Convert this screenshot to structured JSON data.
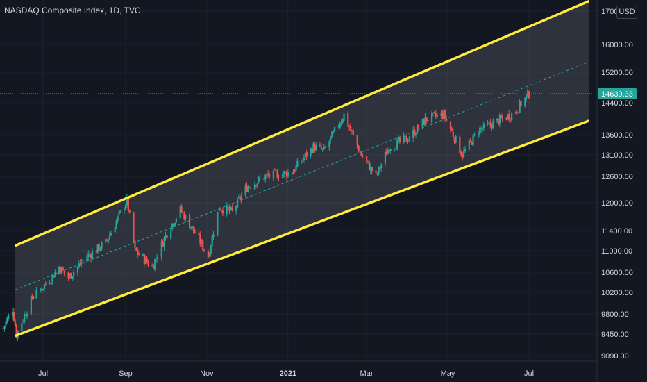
{
  "header": {
    "title": "NASDAQ Composite Index, 1D, TVC",
    "currency": "USD"
  },
  "colors": {
    "background": "#131722",
    "grid": "#1e222d",
    "axis_text": "#d1d4dc",
    "up": "#26a69a",
    "down": "#ef5350",
    "channel": "#ffeb3b",
    "channel_fill": "#787b86",
    "midline": "#26a69a",
    "price_tag": "#26a69a"
  },
  "chart_data": {
    "type": "candlestick",
    "title": "NASDAQ Composite Index, 1D, TVC",
    "last_price": 14639.33,
    "last_price_label": "14639.33",
    "y_ticks": [
      {
        "value": 9090,
        "label": "9090.00"
      },
      {
        "value": 9450,
        "label": "9450.00"
      },
      {
        "value": 9800,
        "label": "9800.00"
      },
      {
        "value": 10200,
        "label": "10200.00"
      },
      {
        "value": 10600,
        "label": "10600.00"
      },
      {
        "value": 11000,
        "label": "11000.00"
      },
      {
        "value": 11400,
        "label": "11400.00"
      },
      {
        "value": 12000,
        "label": "12000.00"
      },
      {
        "value": 12600,
        "label": "12600.00"
      },
      {
        "value": 13100,
        "label": "13100.00"
      },
      {
        "value": 13600,
        "label": "13600.00"
      },
      {
        "value": 14400,
        "label": "14400.00"
      },
      {
        "value": 15200,
        "label": "15200.00"
      },
      {
        "value": 16000,
        "label": "16000.00"
      },
      {
        "value": 17000,
        "label": "17000.00"
      }
    ],
    "x_ticks": [
      {
        "date": "2020-07-01",
        "label": "Jul",
        "bold": false
      },
      {
        "date": "2020-09-01",
        "label": "Sep",
        "bold": false
      },
      {
        "date": "2020-11-01",
        "label": "Nov",
        "bold": false
      },
      {
        "date": "2021-01-01",
        "label": "2021",
        "bold": true
      },
      {
        "date": "2021-03-01",
        "label": "Mar",
        "bold": false
      },
      {
        "date": "2021-05-01",
        "label": "May",
        "bold": false
      },
      {
        "date": "2021-07-01",
        "label": "Jul",
        "bold": false
      }
    ],
    "price_path": [
      [
        "2020-06-01",
        9550
      ],
      [
        "2020-06-08",
        9900
      ],
      [
        "2020-06-11",
        9450
      ],
      [
        "2020-06-23",
        10100
      ],
      [
        "2020-07-06",
        10450
      ],
      [
        "2020-07-13",
        10700
      ],
      [
        "2020-07-20",
        10500
      ],
      [
        "2020-08-03",
        10900
      ],
      [
        "2020-08-17",
        11150
      ],
      [
        "2020-09-02",
        12050
      ],
      [
        "2020-09-08",
        11000
      ],
      [
        "2020-09-21",
        10700
      ],
      [
        "2020-10-01",
        11300
      ],
      [
        "2020-10-12",
        11850
      ],
      [
        "2020-10-20",
        11500
      ],
      [
        "2020-11-02",
        10900
      ],
      [
        "2020-11-10",
        11900
      ],
      [
        "2020-11-20",
        11800
      ],
      [
        "2020-12-01",
        12350
      ],
      [
        "2020-12-15",
        12600
      ],
      [
        "2021-01-04",
        12700
      ],
      [
        "2021-01-20",
        13300
      ],
      [
        "2021-01-28",
        13200
      ],
      [
        "2021-02-12",
        14100
      ],
      [
        "2021-02-25",
        13100
      ],
      [
        "2021-03-08",
        12600
      ],
      [
        "2021-03-18",
        13300
      ],
      [
        "2021-04-01",
        13500
      ],
      [
        "2021-04-15",
        14000
      ],
      [
        "2021-04-28",
        14100
      ],
      [
        "2021-05-12",
        13100
      ],
      [
        "2021-05-24",
        13700
      ],
      [
        "2021-06-08",
        13950
      ],
      [
        "2021-06-20",
        14150
      ],
      [
        "2021-07-01",
        14639
      ]
    ],
    "channel": {
      "upper": [
        [
          "2020-06-10",
          11100
        ],
        [
          "2021-08-15",
          17300
        ]
      ],
      "lower": [
        [
          "2020-06-10",
          9420
        ],
        [
          "2021-08-15",
          13950
        ]
      ],
      "mid": [
        [
          "2020-06-10",
          10250
        ],
        [
          "2021-08-15",
          15500
        ]
      ]
    }
  }
}
